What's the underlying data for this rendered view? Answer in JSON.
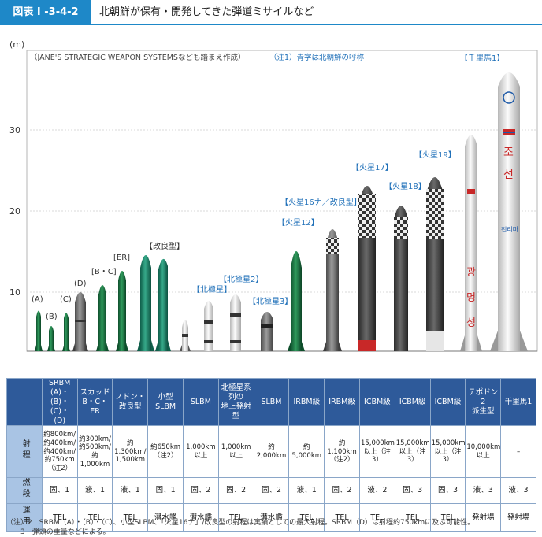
{
  "header": {
    "figure_label": "図表 I -3-4-2",
    "title": "北朝鮮が保有・開発してきた弾道ミサイルなど"
  },
  "chart": {
    "unit": "(m)",
    "y_ticks": [
      "10",
      "20",
      "30"
    ],
    "source_note": "（JANE'S STRATEGIC WEAPON SYSTEMSなども踏まえ作成）",
    "note1": "（注1）青字は北朝鮮の呼称"
  },
  "chart_data": {
    "type": "bar",
    "ylabel": "(m)",
    "ylim": [
      0,
      37
    ],
    "categories": [
      "(A)",
      "(B)",
      "(C)",
      "(D)",
      "[B・C]",
      "[ER]",
      "ノドン",
      "[改良型]",
      "小型SLBM",
      "【北極星】",
      "【北極星2】",
      "【北極星3】",
      "【火星12】",
      "【火星16ナ／改良型】",
      "【火星17】",
      "【火星18】",
      "【火星19】",
      "",
      "【千里馬1】"
    ],
    "values": [
      6,
      4,
      5.5,
      8.5,
      9.5,
      11,
      15,
      15,
      4.5,
      7.5,
      8,
      5,
      15.5,
      17.5,
      22,
      19.5,
      23,
      28.5,
      37
    ]
  },
  "missiles": {
    "labels": {
      "a": "(A)",
      "b": "(B)",
      "c": "(C)",
      "d": "(D)",
      "bc": "[B・C]",
      "er": "[ER]",
      "kairyo": "【改良型】",
      "pks1": "【北極星】",
      "pks2": "【北極星2】",
      "pks3": "【北極星3】",
      "h12": "【火星12】",
      "h16": "【火星16ナ／改良型】",
      "h17": "【火星17】",
      "h18": "【火星18】",
      "h19": "【火星19】",
      "cl": "【千里馬1】"
    },
    "hangul": {
      "cl_top": "조",
      "cl_bottom": "선",
      "cl_logo": "천리마",
      "td1": "광",
      "td2": "명",
      "td3": "성"
    }
  },
  "table": {
    "columns": [
      "SRBM\n(A)・(B)・(C)・\n(D)",
      "スカッド\nB・C・ER",
      "ノドン・\n改良型",
      "小型\nSLBM",
      "SLBM",
      "北極星系列の\n地上発射型",
      "SLBM",
      "IRBM級",
      "IRBM級",
      "ICBM級",
      "ICBM級",
      "ICBM級",
      "テポドン2\n派生型",
      "千里馬1"
    ],
    "rows": [
      {
        "head": "射程",
        "cells": [
          "約800km/\n約400km/\n約400km/\n約750km（注2）",
          "約300km/\n約500km/\n約1,000km",
          "約\n1,300km/\n1,500km",
          "約650km\n（注2）",
          "1,000km\n以上",
          "1,000km\n以上",
          "約2,000km",
          "約5,000km",
          "約1,100km\n（注2）",
          "15,000km\n以上（注3）",
          "15,000km\n以上（注3）",
          "15,000km\n以上（注3）",
          "10,000km\n以上",
          "–"
        ]
      },
      {
        "head": "燃段",
        "cells": [
          "固、1",
          "液、1",
          "液、1",
          "固、1",
          "固、2",
          "固、2",
          "固、2",
          "液、1",
          "固、2",
          "液、2",
          "固、3",
          "固、3",
          "液、3",
          "液、3"
        ]
      },
      {
        "head": "運用",
        "cells": [
          "TEL",
          "TEL",
          "TEL",
          "潜水艦",
          "潜水艦",
          "TEL",
          "潜水艦",
          "TEL",
          "TEL",
          "TEL",
          "TEL",
          "TEL",
          "発射場",
          "発射場"
        ]
      }
    ]
  },
  "footnotes": [
    "（注）2　SRBM（A）・（B）・（C）、小型SLBM、「火星16ナ」/改良型の射程は実績としての最大射程。SRBM（D）は射程約750kmに及ぶ可能性。",
    "　　3　弾頭の重量などによる。"
  ]
}
